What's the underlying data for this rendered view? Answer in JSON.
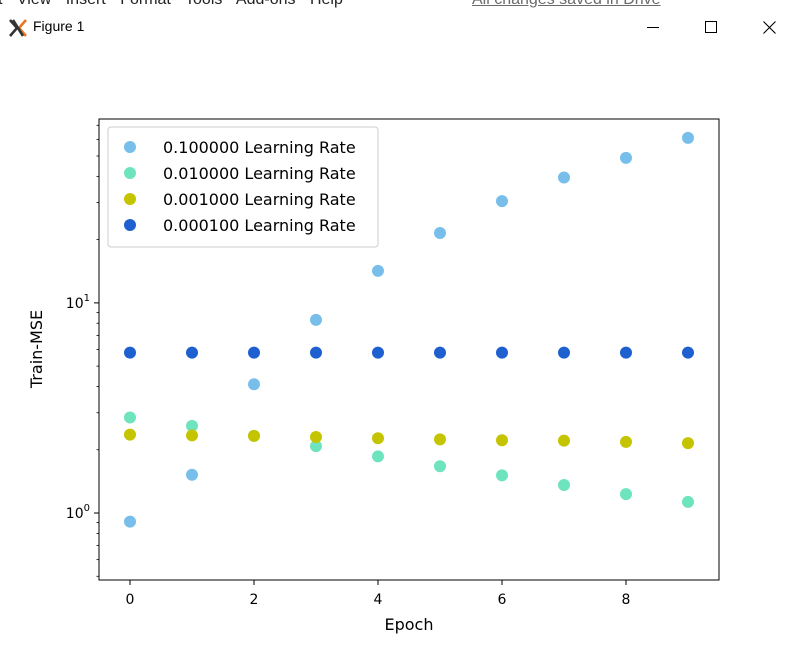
{
  "background_window": {
    "menu_items": [
      "t",
      "View",
      "Insert",
      "Format",
      "Tools",
      "Add-ons",
      "Help"
    ],
    "save_status": "All changes saved in Drive"
  },
  "window": {
    "title": "Figure 1",
    "icons": {
      "app": "matplotlib-x-icon",
      "minimize": "minimize-icon",
      "maximize": "maximize-icon",
      "close": "close-icon"
    }
  },
  "chart_data": {
    "type": "scatter",
    "title": "",
    "xlabel": "Epoch",
    "ylabel": "Train-MSE",
    "yscale": "log",
    "xlim": [
      -0.5,
      9.5
    ],
    "ylim": [
      0.48,
      75
    ],
    "x_ticks": [
      0,
      2,
      4,
      6,
      8
    ],
    "y_ticks": [
      {
        "value": 1,
        "base": "10",
        "exp": "0"
      },
      {
        "value": 10,
        "base": "10",
        "exp": "1"
      }
    ],
    "grid": false,
    "legend_position": "upper-left",
    "x": [
      0,
      1,
      2,
      3,
      4,
      5,
      6,
      7,
      8,
      9
    ],
    "series": [
      {
        "name": "0.100000 Learning Rate",
        "color": "#77bfea",
        "values": [
          0.91,
          1.52,
          4.1,
          8.3,
          14.2,
          21.5,
          30.5,
          39.5,
          49.0,
          61.0
        ]
      },
      {
        "name": "0.010000 Learning Rate",
        "color": "#6ee4be",
        "values": [
          2.85,
          2.6,
          2.33,
          2.08,
          1.86,
          1.67,
          1.51,
          1.36,
          1.23,
          1.13
        ]
      },
      {
        "name": "0.001000 Learning Rate",
        "color": "#c5c400",
        "values": [
          2.36,
          2.34,
          2.33,
          2.3,
          2.27,
          2.24,
          2.22,
          2.21,
          2.18,
          2.15
        ]
      },
      {
        "name": "0.000100 Learning Rate",
        "color": "#1f60d0",
        "values": [
          5.8,
          5.8,
          5.8,
          5.8,
          5.8,
          5.8,
          5.8,
          5.8,
          5.8,
          5.8
        ]
      }
    ]
  }
}
